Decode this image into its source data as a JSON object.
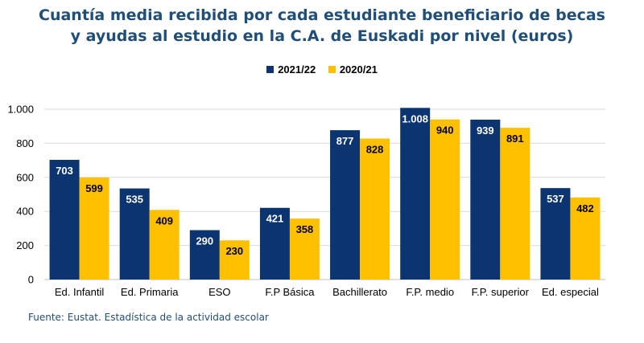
{
  "chart_data": {
    "type": "bar",
    "title_lines": [
      "Cuantía media recibida por cada estudiante beneficiario de becas",
      "y ayudas al estudio en la C.A. de Euskadi por nivel (euros)"
    ],
    "categories": [
      "Ed. Infantil",
      "Ed. Primaria",
      "ESO",
      "F.P Básica",
      "Bachillerato",
      "F.P. medio",
      "F.P. superior",
      "Ed. especial"
    ],
    "series": [
      {
        "name": "2021/22",
        "color": "#0b3471",
        "label_color": "#ffffff",
        "values": [
          703,
          535,
          290,
          421,
          877,
          1008,
          939,
          537
        ],
        "labels": [
          "703",
          "535",
          "290",
          "421",
          "877",
          "1.008",
          "939",
          "537"
        ]
      },
      {
        "name": "2020/21",
        "color": "#ffc000",
        "label_color": "#000000",
        "values": [
          599,
          409,
          230,
          358,
          828,
          940,
          891,
          482
        ],
        "labels": [
          "599",
          "409",
          "230",
          "358",
          "828",
          "940",
          "891",
          "482"
        ]
      }
    ],
    "yticks": [
      0,
      200,
      400,
      600,
      800,
      1000
    ],
    "ytick_labels": [
      "0",
      "200",
      "400",
      "600",
      "800",
      "1.000"
    ],
    "ylim": [
      0,
      1000
    ],
    "xlabel": "",
    "ylabel": "",
    "grid": true,
    "legend_position": "top-center",
    "source": "Fuente: Eustat. Estadística de la actividad escolar"
  }
}
